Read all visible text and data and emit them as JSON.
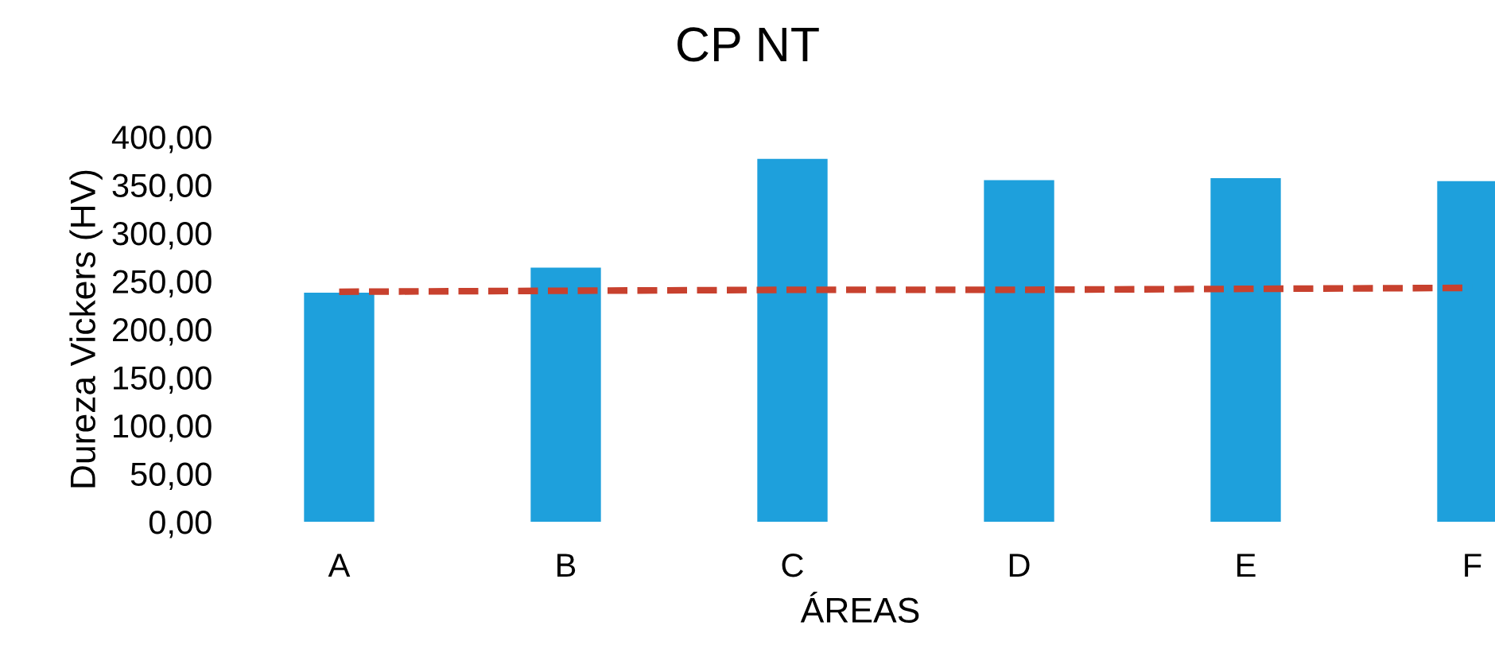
{
  "chart_data": {
    "type": "bar",
    "title": "CP NT",
    "xlabel": "ÁREAS",
    "ylabel": "Dureza Vickers (HV)",
    "categories": [
      "A",
      "B",
      "C",
      "D",
      "E",
      "F"
    ],
    "series": [
      {
        "color": "#1ea0dc",
        "values": [
          238,
          264,
          377,
          355,
          357,
          354
        ]
      },
      {
        "type": "line",
        "color": "#c8412e",
        "line_style": "dashed",
        "values": [
          239,
          240,
          241,
          241,
          242,
          243
        ]
      }
    ],
    "ylim": [
      0,
      400
    ],
    "yticks": [
      {
        "value": 0,
        "label": "0,00"
      },
      {
        "value": 50,
        "label": "50,00"
      },
      {
        "value": 100,
        "label": "100,00"
      },
      {
        "value": 150,
        "label": "150,00"
      },
      {
        "value": 200,
        "label": "200,00"
      },
      {
        "value": 250,
        "label": "250,00"
      },
      {
        "value": 300,
        "label": "300,00"
      },
      {
        "value": 350,
        "label": "350,00"
      },
      {
        "value": 400,
        "label": "400,00"
      }
    ],
    "grid": false,
    "legend": false
  }
}
